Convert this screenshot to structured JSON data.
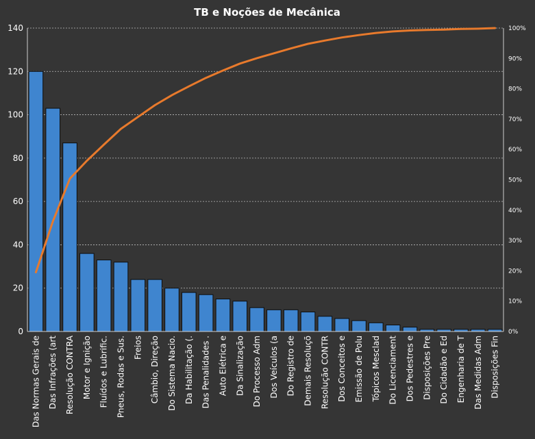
{
  "chart_data": {
    "type": "bar",
    "title": "TB e Noções de Mecânica",
    "xlabel": "",
    "ylabel": "",
    "ylim": [
      0,
      140
    ],
    "y_ticks": [
      "0",
      "20",
      "40",
      "60",
      "80",
      "100",
      "120",
      "140"
    ],
    "y2lim": [
      0,
      100
    ],
    "y2_ticks": [
      "0%",
      "10%",
      "20%",
      "30%",
      "40%",
      "50%",
      "60%",
      "70%",
      "80%",
      "90%",
      "100%"
    ],
    "grid": true,
    "bar_color": "#3f85cf",
    "line_color": "#e87a2c",
    "categories": [
      "Das Normas Gerais de",
      "Das Infrações (art",
      "Resolução CONTRA",
      "Motor e Ignição",
      "Fluídos e Lubrific.",
      "Pneus, Rodas e Sus.",
      "Freios",
      "Câmbio, Direção",
      "Do Sistema Nacio.",
      "Da Habilitação (.",
      "Das Penalidades .",
      "Auto Elétrica e",
      "Da Sinalização",
      "Do Processo Adm",
      "Dos Veículos (a",
      "Do Registro de",
      "Demais Resoluçõ",
      "Resolução CONTR",
      "Dos Conceitos e",
      "Emissão de Polu",
      "Tópicos Mesclad",
      "Do Licenciament",
      "Dos Pedestres e",
      "Disposições Pre",
      "Do Cidadão e Ed",
      "Engenharia de T",
      "Das Medidas Adm",
      "Disposições Fin"
    ],
    "series": [
      {
        "type": "bar",
        "values": [
          120,
          103,
          87,
          36,
          33,
          32,
          24,
          24,
          20,
          18,
          17,
          15,
          14,
          11,
          10,
          10,
          9,
          7,
          6,
          5,
          4,
          3,
          2,
          1,
          1,
          1,
          1,
          1
        ]
      },
      {
        "type": "line",
        "axis": "secondary",
        "values": [
          19.5,
          36.3,
          50.4,
          56.3,
          61.6,
          66.8,
          70.7,
          74.6,
          77.9,
          80.8,
          83.6,
          86.0,
          88.3,
          90.1,
          91.7,
          93.3,
          94.8,
          95.9,
          96.9,
          97.7,
          98.4,
          98.9,
          99.2,
          99.4,
          99.5,
          99.7,
          99.8,
          100.0
        ]
      }
    ]
  }
}
